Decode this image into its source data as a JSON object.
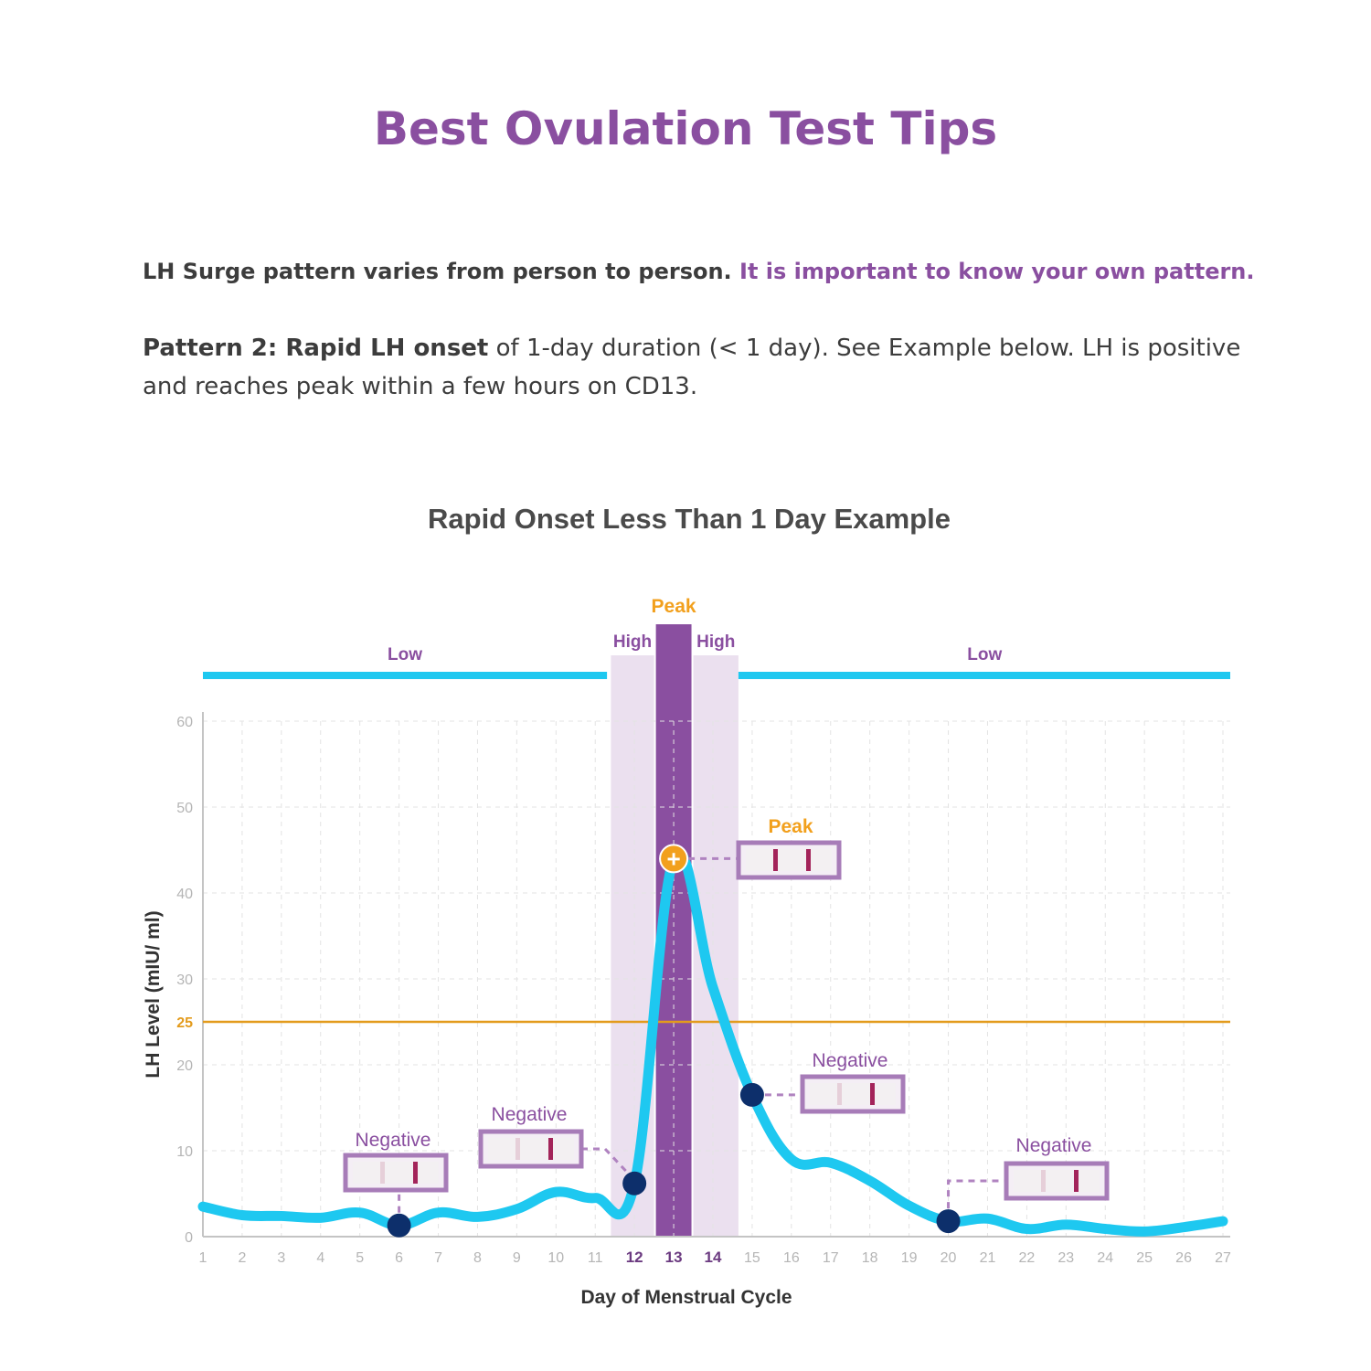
{
  "header": {
    "title": "Best Ovulation Test Tips",
    "intro_plain": "LH Surge pattern varies from person to person.",
    "intro_accent": "It is important to know your own pattern.",
    "pattern_bold": "Pattern 2: Rapid LH onset",
    "pattern_text": "of 1-day duration (< 1 day). See Example below. LH is positive and reaches peak within a few hours on CD13."
  },
  "chart_data": {
    "type": "line",
    "title": "Rapid Onset Less Than 1 Day Example",
    "xlabel": "Day of Menstrual Cycle",
    "ylabel": "LH Level (mIU/ ml)",
    "x": [
      1,
      2,
      3,
      4,
      5,
      6,
      7,
      8,
      9,
      10,
      11,
      12,
      13,
      14,
      15,
      16,
      17,
      18,
      19,
      20,
      21,
      22,
      23,
      24,
      25,
      26,
      27
    ],
    "series": [
      {
        "values": [
          3.5,
          2.5,
          2.4,
          2.2,
          2.8,
          1.3,
          2.8,
          2.3,
          3.2,
          5.2,
          4.5,
          6.2,
          44,
          29,
          16.5,
          9,
          8.6,
          6.5,
          3.6,
          1.8,
          2.1,
          0.9,
          1.4,
          0.9,
          0.6,
          1.1,
          1.8
        ],
        "color": "#1ec8f0"
      }
    ],
    "xlim": [
      1,
      27
    ],
    "ylim": [
      0,
      60
    ],
    "y_ticks": [
      0,
      10,
      20,
      30,
      40,
      50,
      60
    ],
    "threshold": {
      "value": 25,
      "label": "25",
      "color": "#e39b1c"
    },
    "highlight_days": [
      12,
      13,
      14
    ],
    "grid": true,
    "bands": [
      {
        "label": "Low",
        "x_from": 1,
        "x_to": 11.3
      },
      {
        "label": "High",
        "x_from": 11.4,
        "x_to": 12.5
      },
      {
        "label": "Peak",
        "x_from": 12.5,
        "x_to": 13.5
      },
      {
        "label": "High",
        "x_from": 13.5,
        "x_to": 14.65
      },
      {
        "label": "Low",
        "x_from": 14.65,
        "x_to": 27.2
      }
    ],
    "test_markers": [
      {
        "day": 6,
        "value": 1.3,
        "result": "Negative"
      },
      {
        "day": 12,
        "value": 6.2,
        "result": "Negative"
      },
      {
        "day": 13,
        "value": 44,
        "result": "Peak"
      },
      {
        "day": 15,
        "value": 16.5,
        "result": "Negative"
      },
      {
        "day": 20,
        "value": 1.8,
        "result": "Negative"
      }
    ],
    "colors": {
      "line": "#1ec8f0",
      "marker": "#0d2f6b",
      "peak_marker": "#f2a01d",
      "purple": "#8a4fa0",
      "band_light": "#ebe0ef",
      "strip_line": "#a3245a"
    }
  }
}
